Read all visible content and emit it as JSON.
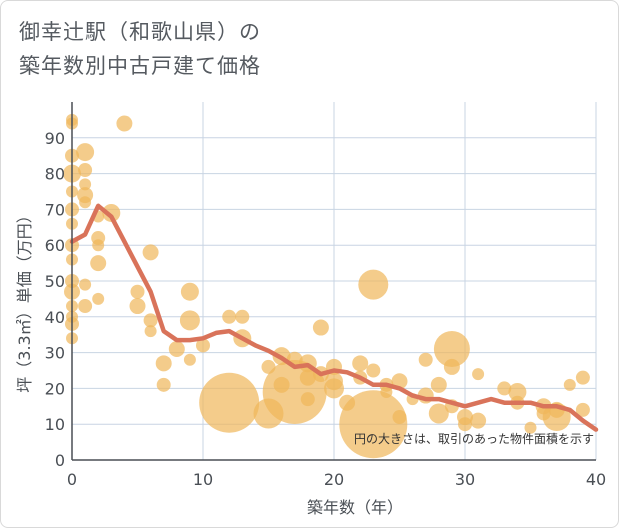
{
  "title_line1": "御幸辻駅（和歌山県）の",
  "title_line2": "築年数別中古戸建て価格",
  "note": "円の大きさは、取引のあった物件面積を示す",
  "colors": {
    "bubble": "#f0b65a",
    "line": "#d9735a",
    "grid": "#c8d4e3",
    "axis": "#4a4f55"
  },
  "chart_data": {
    "type": "scatter",
    "xlabel": "築年数（年）",
    "ylabel": "坪（3.3㎡）単価（万円）",
    "xlim": [
      0,
      40
    ],
    "ylim": [
      0,
      100
    ],
    "xticks": [
      0,
      10,
      20,
      30,
      40
    ],
    "yticks": [
      0,
      10,
      20,
      30,
      40,
      50,
      60,
      70,
      80,
      90
    ],
    "points": [
      {
        "x": 0,
        "y": 95,
        "s": 6
      },
      {
        "x": 0,
        "y": 94,
        "s": 6
      },
      {
        "x": 0,
        "y": 85,
        "s": 7
      },
      {
        "x": 0,
        "y": 80,
        "s": 9
      },
      {
        "x": 0,
        "y": 75,
        "s": 6
      },
      {
        "x": 0,
        "y": 70,
        "s": 7
      },
      {
        "x": 0,
        "y": 66,
        "s": 6
      },
      {
        "x": 0,
        "y": 60,
        "s": 7
      },
      {
        "x": 0,
        "y": 56,
        "s": 6
      },
      {
        "x": 0,
        "y": 50,
        "s": 7
      },
      {
        "x": 0,
        "y": 47,
        "s": 8
      },
      {
        "x": 0,
        "y": 43,
        "s": 6
      },
      {
        "x": 0,
        "y": 38,
        "s": 7
      },
      {
        "x": 0,
        "y": 34,
        "s": 6
      },
      {
        "x": 0,
        "y": 40,
        "s": 6
      },
      {
        "x": 1,
        "y": 86,
        "s": 9
      },
      {
        "x": 1,
        "y": 81,
        "s": 7
      },
      {
        "x": 1,
        "y": 77,
        "s": 6
      },
      {
        "x": 1,
        "y": 74,
        "s": 8
      },
      {
        "x": 1,
        "y": 72,
        "s": 6
      },
      {
        "x": 1,
        "y": 49,
        "s": 6
      },
      {
        "x": 1,
        "y": 43,
        "s": 7
      },
      {
        "x": 2,
        "y": 68,
        "s": 6
      },
      {
        "x": 2,
        "y": 62,
        "s": 7
      },
      {
        "x": 2,
        "y": 60,
        "s": 6
      },
      {
        "x": 2,
        "y": 55,
        "s": 8
      },
      {
        "x": 2,
        "y": 45,
        "s": 6
      },
      {
        "x": 3,
        "y": 69,
        "s": 9
      },
      {
        "x": 4,
        "y": 94,
        "s": 8
      },
      {
        "x": 6,
        "y": 58,
        "s": 8
      },
      {
        "x": 5,
        "y": 47,
        "s": 7
      },
      {
        "x": 5,
        "y": 43,
        "s": 8
      },
      {
        "x": 6,
        "y": 39,
        "s": 7
      },
      {
        "x": 6,
        "y": 36,
        "s": 6
      },
      {
        "x": 7,
        "y": 27,
        "s": 8
      },
      {
        "x": 7,
        "y": 21,
        "s": 7
      },
      {
        "x": 8,
        "y": 31,
        "s": 8
      },
      {
        "x": 9,
        "y": 47,
        "s": 9
      },
      {
        "x": 9,
        "y": 39,
        "s": 10
      },
      {
        "x": 9,
        "y": 28,
        "s": 6
      },
      {
        "x": 10,
        "y": 32,
        "s": 7
      },
      {
        "x": 12,
        "y": 40,
        "s": 7
      },
      {
        "x": 13,
        "y": 40,
        "s": 7
      },
      {
        "x": 12,
        "y": 16,
        "s": 30
      },
      {
        "x": 13,
        "y": 34,
        "s": 9
      },
      {
        "x": 15,
        "y": 13,
        "s": 15
      },
      {
        "x": 15,
        "y": 26,
        "s": 7
      },
      {
        "x": 16,
        "y": 29,
        "s": 9
      },
      {
        "x": 16,
        "y": 21,
        "s": 8
      },
      {
        "x": 17,
        "y": 19,
        "s": 32
      },
      {
        "x": 17,
        "y": 28,
        "s": 8
      },
      {
        "x": 18,
        "y": 27,
        "s": 9
      },
      {
        "x": 18,
        "y": 23,
        "s": 8
      },
      {
        "x": 18,
        "y": 17,
        "s": 7
      },
      {
        "x": 19,
        "y": 37,
        "s": 8
      },
      {
        "x": 19,
        "y": 24,
        "s": 8
      },
      {
        "x": 20,
        "y": 26,
        "s": 8
      },
      {
        "x": 20,
        "y": 22,
        "s": 9
      },
      {
        "x": 20,
        "y": 20,
        "s": 10
      },
      {
        "x": 21,
        "y": 16,
        "s": 8
      },
      {
        "x": 22,
        "y": 27,
        "s": 8
      },
      {
        "x": 22,
        "y": 23,
        "s": 7
      },
      {
        "x": 23,
        "y": 49,
        "s": 15
      },
      {
        "x": 23,
        "y": 10,
        "s": 34
      },
      {
        "x": 23,
        "y": 25,
        "s": 7
      },
      {
        "x": 24,
        "y": 21,
        "s": 7
      },
      {
        "x": 24,
        "y": 19,
        "s": 6
      },
      {
        "x": 25,
        "y": 22,
        "s": 8
      },
      {
        "x": 25,
        "y": 12,
        "s": 7
      },
      {
        "x": 26,
        "y": 17,
        "s": 6
      },
      {
        "x": 27,
        "y": 28,
        "s": 7
      },
      {
        "x": 27,
        "y": 18,
        "s": 8
      },
      {
        "x": 28,
        "y": 21,
        "s": 8
      },
      {
        "x": 28,
        "y": 13,
        "s": 10
      },
      {
        "x": 29,
        "y": 31,
        "s": 18
      },
      {
        "x": 29,
        "y": 26,
        "s": 8
      },
      {
        "x": 29,
        "y": 15,
        "s": 7
      },
      {
        "x": 30,
        "y": 12,
        "s": 8
      },
      {
        "x": 30,
        "y": 10,
        "s": 7
      },
      {
        "x": 31,
        "y": 24,
        "s": 6
      },
      {
        "x": 31,
        "y": 11,
        "s": 8
      },
      {
        "x": 33,
        "y": 20,
        "s": 7
      },
      {
        "x": 34,
        "y": 19,
        "s": 9
      },
      {
        "x": 34,
        "y": 16,
        "s": 7
      },
      {
        "x": 35,
        "y": 9,
        "s": 6
      },
      {
        "x": 36,
        "y": 15,
        "s": 8
      },
      {
        "x": 36,
        "y": 13,
        "s": 7
      },
      {
        "x": 37,
        "y": 14,
        "s": 8
      },
      {
        "x": 37,
        "y": 12,
        "s": 14
      },
      {
        "x": 38,
        "y": 21,
        "s": 6
      },
      {
        "x": 39,
        "y": 23,
        "s": 7
      },
      {
        "x": 39,
        "y": 14,
        "s": 7
      }
    ],
    "trend": [
      {
        "x": 0,
        "y": 61
      },
      {
        "x": 1,
        "y": 63
      },
      {
        "x": 2,
        "y": 71
      },
      {
        "x": 3,
        "y": 68
      },
      {
        "x": 4,
        "y": 61
      },
      {
        "x": 5,
        "y": 54
      },
      {
        "x": 6,
        "y": 47
      },
      {
        "x": 7,
        "y": 36
      },
      {
        "x": 8,
        "y": 33.5
      },
      {
        "x": 9,
        "y": 33.5
      },
      {
        "x": 10,
        "y": 34
      },
      {
        "x": 11,
        "y": 35.5
      },
      {
        "x": 12,
        "y": 36
      },
      {
        "x": 13,
        "y": 34
      },
      {
        "x": 14,
        "y": 32
      },
      {
        "x": 15,
        "y": 30.5
      },
      {
        "x": 16,
        "y": 28.5
      },
      {
        "x": 17,
        "y": 26
      },
      {
        "x": 18,
        "y": 26.5
      },
      {
        "x": 19,
        "y": 24
      },
      {
        "x": 20,
        "y": 25
      },
      {
        "x": 21,
        "y": 24.5
      },
      {
        "x": 22,
        "y": 23
      },
      {
        "x": 23,
        "y": 21
      },
      {
        "x": 24,
        "y": 21
      },
      {
        "x": 25,
        "y": 20
      },
      {
        "x": 26,
        "y": 18
      },
      {
        "x": 27,
        "y": 17
      },
      {
        "x": 28,
        "y": 17
      },
      {
        "x": 29,
        "y": 16
      },
      {
        "x": 30,
        "y": 15
      },
      {
        "x": 31,
        "y": 16
      },
      {
        "x": 32,
        "y": 17
      },
      {
        "x": 33,
        "y": 16
      },
      {
        "x": 34,
        "y": 16
      },
      {
        "x": 35,
        "y": 16
      },
      {
        "x": 36,
        "y": 15
      },
      {
        "x": 37,
        "y": 15
      },
      {
        "x": 38,
        "y": 14
      },
      {
        "x": 39,
        "y": 11
      },
      {
        "x": 40,
        "y": 8.5
      }
    ]
  }
}
